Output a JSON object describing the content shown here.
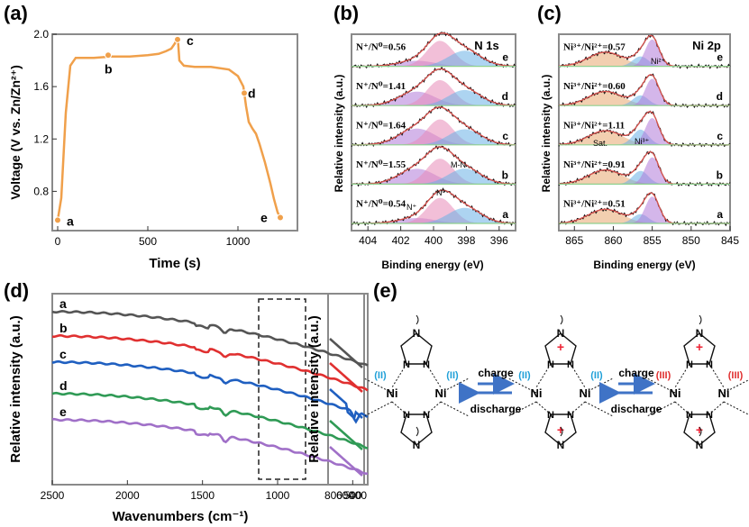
{
  "panels": {
    "a": "(a)",
    "b": "(b)",
    "c": "(c)",
    "d": "(d)",
    "e": "(e)"
  },
  "chart_data": [
    {
      "id": "a",
      "type": "line",
      "color": "#f0a04b",
      "ylabel": "Voltage (V vs. Zn/Zn²⁺)",
      "xlabel": "Time (s)",
      "xlim": [
        -30,
        1330
      ],
      "ylim": [
        0.5,
        2.0
      ],
      "xticks": [
        0,
        500,
        1000
      ],
      "yticks": [
        0.8,
        1.2,
        1.6,
        2.0
      ],
      "ytick_labels": [
        "0.8",
        "1.2",
        "1.6",
        "2.0"
      ],
      "x": [
        0,
        20,
        45,
        70,
        100,
        200,
        300,
        400,
        500,
        560,
        600,
        630,
        650,
        660,
        668,
        675,
        700,
        760,
        850,
        950,
        1000,
        1030,
        1045,
        1060,
        1080,
        1100,
        1120,
        1150,
        1180,
        1200,
        1220,
        1235
      ],
      "y": [
        0.58,
        0.75,
        1.4,
        1.76,
        1.82,
        1.82,
        1.83,
        1.83,
        1.84,
        1.85,
        1.87,
        1.89,
        1.93,
        1.96,
        1.94,
        1.8,
        1.76,
        1.75,
        1.75,
        1.73,
        1.68,
        1.6,
        1.45,
        1.33,
        1.28,
        1.24,
        1.16,
        1.02,
        0.86,
        0.74,
        0.64,
        0.6
      ],
      "points": [
        {
          "x": 0,
          "y": 0.58,
          "label": "a"
        },
        {
          "x": 280,
          "y": 1.84,
          "label": "b"
        },
        {
          "x": 665,
          "y": 1.96,
          "label": "c"
        },
        {
          "x": 1035,
          "y": 1.55,
          "label": "d"
        },
        {
          "x": 1235,
          "y": 0.6,
          "label": "e"
        }
      ]
    },
    {
      "id": "b",
      "type": "line",
      "title": "N 1s",
      "xlabel": "Binding energy (eV)",
      "ylabel": "Relative intensity (a.u.)",
      "xlim": [
        405,
        395
      ],
      "xticks": [
        404,
        402,
        400,
        398,
        396
      ],
      "peak_labels": [
        "Nº",
        "N⁺",
        "M-N"
      ],
      "series": [
        {
          "name": "a",
          "ratio": "N⁺/N⁰=0.54"
        },
        {
          "name": "b",
          "ratio": "N⁺/N⁰=1.55"
        },
        {
          "name": "c",
          "ratio": "N⁺/N⁰=1.64"
        },
        {
          "name": "d",
          "ratio": "N⁺/N⁰=1.41"
        },
        {
          "name": "e",
          "ratio": "N⁺/N⁰=0.56"
        }
      ]
    },
    {
      "id": "c",
      "type": "line",
      "title": "Ni 2p",
      "xlabel": "Binding energy (eV)",
      "ylabel": "Relative intensity (a.u.)",
      "xlim": [
        867,
        845
      ],
      "xticks": [
        865,
        860,
        855,
        850,
        845
      ],
      "peak_labels": [
        "Sat.",
        "Ni³⁺",
        "Ni²⁺"
      ],
      "series": [
        {
          "name": "a",
          "ratio": "Ni³⁺/Ni²⁺=0.51"
        },
        {
          "name": "b",
          "ratio": "Ni³⁺/Ni²⁺=0.91"
        },
        {
          "name": "c",
          "ratio": "Ni³⁺/Ni²⁺=1.11"
        },
        {
          "name": "d",
          "ratio": "Ni³⁺/Ni²⁺=0.60"
        },
        {
          "name": "e",
          "ratio": "Ni³⁺/Ni²⁺=0.57"
        }
      ]
    },
    {
      "id": "d",
      "type": "line",
      "xlabel": "Wavenumbers (cm⁻¹)",
      "ylabel": "Relative intensity (a.u.)",
      "xlim": [
        2500,
        400
      ],
      "xticks": [
        2500,
        2000,
        1500,
        1000,
        500
      ],
      "inset_xticks": [
        800,
        600,
        400
      ],
      "series": [
        {
          "name": "a",
          "color": "#555555"
        },
        {
          "name": "b",
          "color": "#e03030"
        },
        {
          "name": "c",
          "color": "#1f5fc0"
        },
        {
          "name": "d",
          "color": "#2f9a55"
        },
        {
          "name": "e",
          "color": "#a070c8"
        }
      ]
    }
  ],
  "scheme": {
    "charge": "charge",
    "discharge": "discharge",
    "ni": "Ni",
    "n": "N",
    "plus": "+",
    "ox2": "(II)",
    "ox3": "(III)"
  }
}
